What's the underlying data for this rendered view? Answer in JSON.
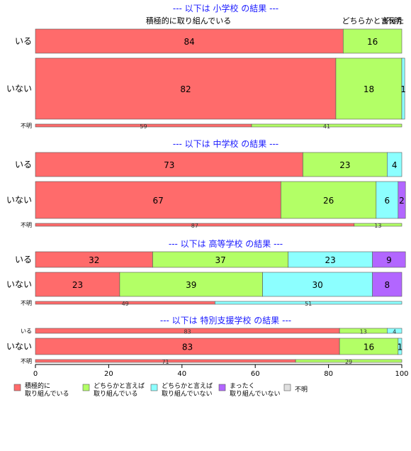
{
  "chart_data": {
    "type": "bar",
    "orientation": "horizontal",
    "stacked": true,
    "xlim": [
      0,
      100
    ],
    "xticks": [
      "0",
      "20",
      "40",
      "60",
      "80",
      "100"
    ],
    "top_labels": [
      "積極的に取り組んでいる",
      "どちらかと言え",
      "まった",
      "不明"
    ],
    "legend": [
      {
        "label": "積極的に\n取り組んでいる",
        "color": "#ff6b6b"
      },
      {
        "label": "どちらかと言えば\n取り組んでいる",
        "color": "#b3ff66"
      },
      {
        "label": "どちらかと言えば\n取り組んでいない",
        "color": "#8cffff"
      },
      {
        "label": "まったく\n取り組んでいない",
        "color": "#b266ff"
      },
      {
        "label": "不明",
        "color": "#e0e0e0"
      }
    ],
    "panels": [
      {
        "title": "--- 以下は 小学校 の結果 ---",
        "rows": [
          {
            "label": "いる",
            "values": [
              84,
              16,
              0,
              0,
              0
            ],
            "shown": [
              "84",
              "16",
              "",
              "",
              ""
            ]
          },
          {
            "label": "いない",
            "values": [
              82,
              18,
              0.8,
              0,
              0
            ],
            "shown": [
              "82",
              "18",
              "1",
              "",
              ""
            ]
          },
          {
            "label": "不明",
            "values": [
              59,
              41,
              0,
              0,
              0
            ],
            "shown": [
              "59",
              "41",
              "",
              "",
              ""
            ],
            "thin": true
          }
        ]
      },
      {
        "title": "--- 以下は 中学校 の結果 ---",
        "rows": [
          {
            "label": "いる",
            "values": [
              73,
              23,
              4,
              0,
              0
            ],
            "shown": [
              "73",
              "23",
              "4",
              "",
              ""
            ]
          },
          {
            "label": "いない",
            "values": [
              67,
              26,
              6,
              2,
              0
            ],
            "shown": [
              "67",
              "26",
              "6",
              "2",
              ""
            ]
          },
          {
            "label": "不明",
            "values": [
              87,
              13,
              0,
              0,
              0
            ],
            "shown": [
              "87",
              "13",
              "",
              "",
              ""
            ],
            "thin": true
          }
        ]
      },
      {
        "title": "--- 以下は 高等学校 の結果 ---",
        "rows": [
          {
            "label": "いる",
            "values": [
              32,
              37,
              23,
              9,
              0
            ],
            "shown": [
              "32",
              "37",
              "23",
              "9",
              ""
            ]
          },
          {
            "label": "いない",
            "values": [
              23,
              39,
              30,
              8,
              0
            ],
            "shown": [
              "23",
              "39",
              "30",
              "8",
              ""
            ]
          },
          {
            "label": "不明",
            "values": [
              49,
              0,
              51,
              0,
              0
            ],
            "shown": [
              "49",
              "",
              "51",
              "",
              ""
            ],
            "thin": true
          }
        ]
      },
      {
        "title": "--- 以下は 特別支援学校 の結果 ---",
        "rows": [
          {
            "label": "いる",
            "values": [
              83,
              13,
              4,
              0,
              0
            ],
            "shown": [
              "83",
              "13",
              "4",
              "",
              ""
            ],
            "thin": true
          },
          {
            "label": "いない",
            "values": [
              83,
              16,
              1,
              0,
              0
            ],
            "shown": [
              "83",
              "16",
              "1",
              "",
              ""
            ]
          },
          {
            "label": "不明",
            "values": [
              71,
              29,
              0,
              0,
              0
            ],
            "shown": [
              "71",
              "29",
              "",
              "",
              ""
            ],
            "thin": true
          }
        ]
      }
    ]
  }
}
